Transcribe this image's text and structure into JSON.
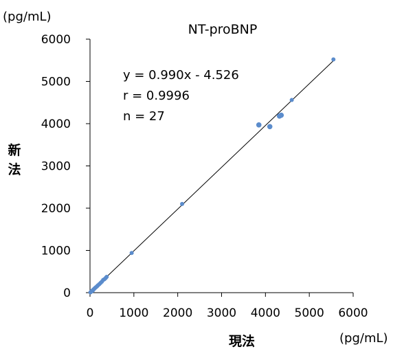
{
  "chart_data": {
    "type": "scatter",
    "title": "NT-proBNP",
    "xlabel": "現法",
    "ylabel": "新法",
    "x_unit": "(pg/mL)",
    "y_unit": "(pg/mL)",
    "xlim": [
      0,
      6000
    ],
    "ylim": [
      0,
      6000
    ],
    "x_ticks": [
      0,
      1000,
      2000,
      3000,
      4000,
      5000,
      6000
    ],
    "y_ticks": [
      0,
      1000,
      2000,
      3000,
      4000,
      5000,
      6000
    ],
    "grid": false,
    "annotations": [
      "y = 0.990x - 4.526",
      "r = 0.9996",
      "n = 27"
    ],
    "regression": {
      "slope": 0.99,
      "intercept": -4.526,
      "x_range": [
        0,
        5550
      ]
    },
    "point_color": "#5b8ccc",
    "line_color": "#000000",
    "points": [
      {
        "x": 10,
        "y": 8
      },
      {
        "x": 25,
        "y": 22
      },
      {
        "x": 40,
        "y": 35
      },
      {
        "x": 55,
        "y": 50
      },
      {
        "x": 70,
        "y": 65
      },
      {
        "x": 85,
        "y": 80
      },
      {
        "x": 100,
        "y": 95
      },
      {
        "x": 120,
        "y": 115
      },
      {
        "x": 140,
        "y": 132
      },
      {
        "x": 160,
        "y": 150
      },
      {
        "x": 180,
        "y": 172
      },
      {
        "x": 210,
        "y": 200
      },
      {
        "x": 240,
        "y": 230
      },
      {
        "x": 270,
        "y": 260
      },
      {
        "x": 300,
        "y": 300
      },
      {
        "x": 330,
        "y": 320
      },
      {
        "x": 360,
        "y": 350
      },
      {
        "x": 380,
        "y": 375
      },
      {
        "x": 950,
        "y": 940
      },
      {
        "x": 2100,
        "y": 2100
      },
      {
        "x": 3850,
        "y": 3970
      },
      {
        "x": 4100,
        "y": 3930
      },
      {
        "x": 4320,
        "y": 4180
      },
      {
        "x": 4360,
        "y": 4200
      },
      {
        "x": 4600,
        "y": 4560
      },
      {
        "x": 5550,
        "y": 5520
      },
      {
        "x": 60,
        "y": 45
      }
    ]
  }
}
